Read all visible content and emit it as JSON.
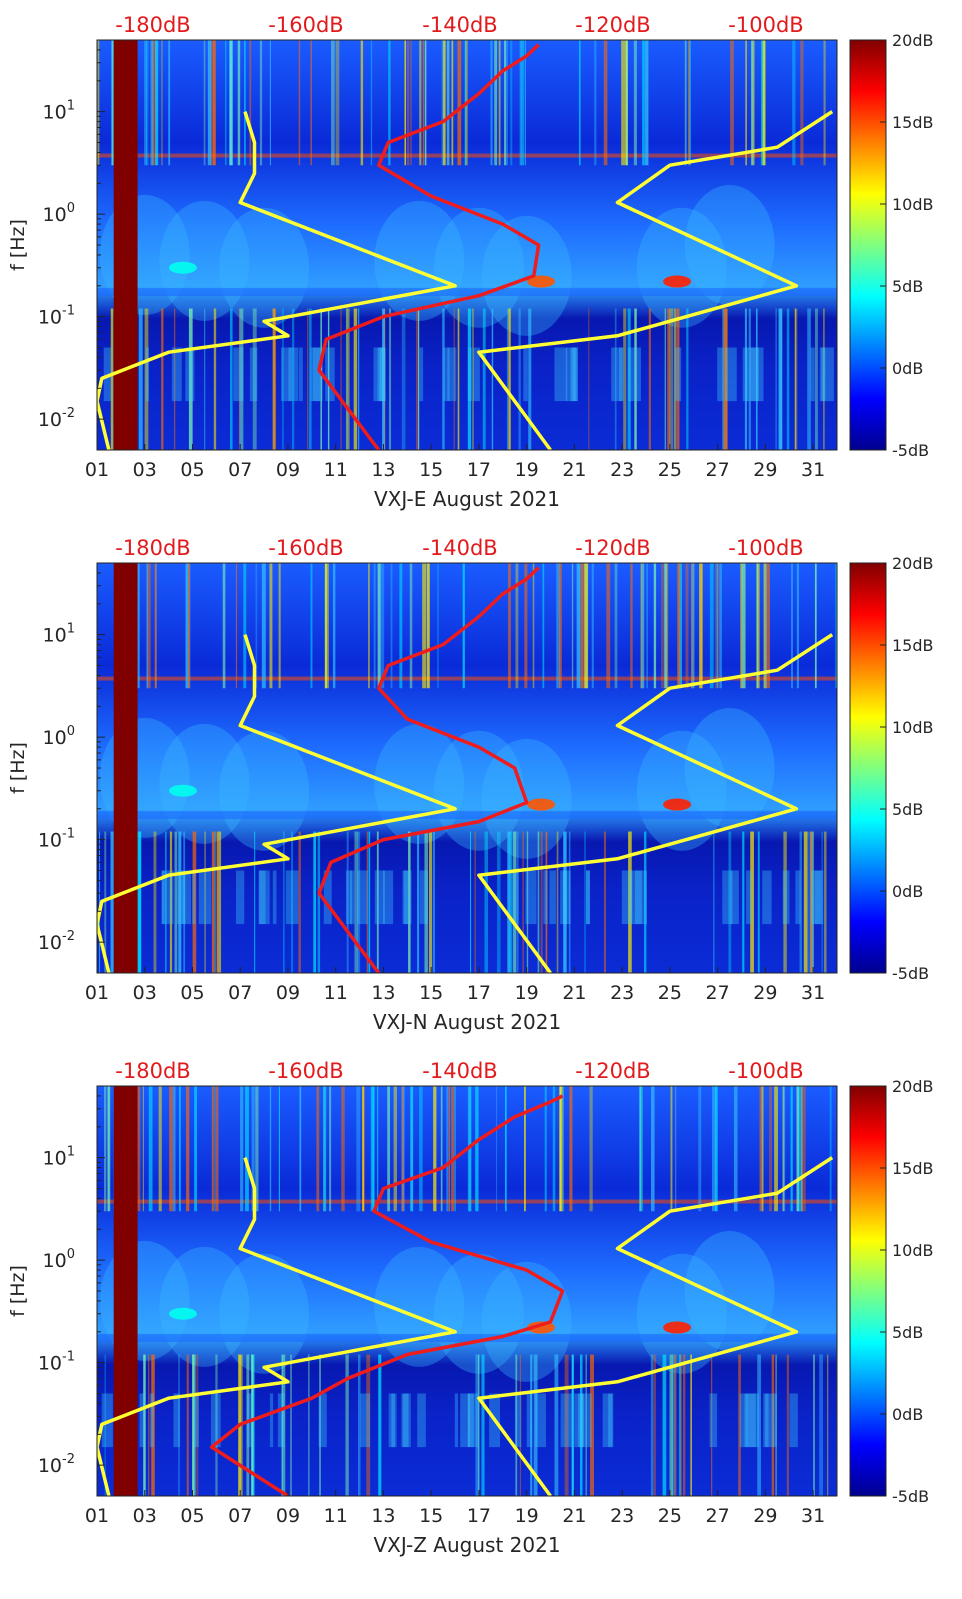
{
  "figure": {
    "description_days": "August 2021"
  },
  "chart_data": [
    {
      "type": "heatmap",
      "xlabel": "VXJ-E August 2021",
      "ylabel": "f [Hz]",
      "top_axis_labels": [
        "-180dB",
        "-160dB",
        "-140dB",
        "-120dB",
        "-100dB"
      ],
      "x_ticks": [
        "01",
        "03",
        "05",
        "07",
        "09",
        "11",
        "13",
        "15",
        "17",
        "19",
        "21",
        "23",
        "25",
        "27",
        "29",
        "31"
      ],
      "y_ticks": [
        {
          "value": 10,
          "label": "10^1"
        },
        {
          "value": 1,
          "label": "10^0"
        },
        {
          "value": 0.1,
          "label": "10^-1"
        },
        {
          "value": 0.01,
          "label": "10^-2"
        }
      ],
      "xlim": [
        1,
        32
      ],
      "ylim": [
        0.005,
        50
      ],
      "colorbar": {
        "labels": [
          "20dB",
          "15dB",
          "10dB",
          "5dB",
          "0dB",
          "-5dB"
        ],
        "range": [
          -5,
          20
        ]
      },
      "series": [
        {
          "name": "yellow-low-noise-model",
          "color": "#ffff33",
          "points": [
            [
              1.5,
              0.005
            ],
            [
              1.0,
              0.015
            ],
            [
              1.2,
              0.025
            ],
            [
              4,
              0.045
            ],
            [
              9.0,
              0.065
            ],
            [
              8,
              0.09
            ],
            [
              16,
              0.2
            ],
            [
              7,
              1.3
            ],
            [
              7.6,
              2.5
            ],
            [
              7.6,
              5
            ],
            [
              7.2,
              10
            ]
          ]
        },
        {
          "name": "yellow-high-noise-model",
          "color": "#ffff33",
          "points": [
            [
              20,
              0.005
            ],
            [
              17,
              0.045
            ],
            [
              22.8,
              0.065
            ],
            [
              30.3,
              0.2
            ],
            [
              22.8,
              1.3
            ],
            [
              25,
              3
            ],
            [
              29.5,
              4.5
            ],
            [
              31.8,
              10
            ]
          ]
        },
        {
          "name": "red-psd",
          "color": "#ee1c1c",
          "points": [
            [
              12.8,
              0.005
            ],
            [
              10.3,
              0.03
            ],
            [
              10.6,
              0.06
            ],
            [
              13,
              0.1
            ],
            [
              17,
              0.16
            ],
            [
              19.3,
              0.25
            ],
            [
              19.5,
              0.5
            ],
            [
              18,
              0.8
            ],
            [
              15,
              1.5
            ],
            [
              12.8,
              3
            ],
            [
              13.2,
              5
            ],
            [
              15.5,
              8
            ],
            [
              17,
              15
            ],
            [
              18,
              25
            ],
            [
              19,
              35
            ],
            [
              19.5,
              45
            ]
          ]
        }
      ]
    },
    {
      "type": "heatmap",
      "xlabel": "VXJ-N August 2021",
      "ylabel": "f [Hz]",
      "top_axis_labels": [
        "-180dB",
        "-160dB",
        "-140dB",
        "-120dB",
        "-100dB"
      ],
      "x_ticks": [
        "01",
        "03",
        "05",
        "07",
        "09",
        "11",
        "13",
        "15",
        "17",
        "19",
        "21",
        "23",
        "25",
        "27",
        "29",
        "31"
      ],
      "y_ticks": [
        {
          "value": 10,
          "label": "10^1"
        },
        {
          "value": 1,
          "label": "10^0"
        },
        {
          "value": 0.1,
          "label": "10^-1"
        },
        {
          "value": 0.01,
          "label": "10^-2"
        }
      ],
      "xlim": [
        1,
        32
      ],
      "ylim": [
        0.005,
        50
      ],
      "colorbar": {
        "labels": [
          "20dB",
          "15dB",
          "10dB",
          "5dB",
          "0dB",
          "-5dB"
        ],
        "range": [
          -5,
          20
        ]
      },
      "series": [
        {
          "name": "yellow-low-noise-model",
          "color": "#ffff33",
          "points": [
            [
              1.5,
              0.005
            ],
            [
              1.0,
              0.015
            ],
            [
              1.2,
              0.025
            ],
            [
              4,
              0.045
            ],
            [
              9.0,
              0.065
            ],
            [
              8,
              0.09
            ],
            [
              16,
              0.2
            ],
            [
              7,
              1.3
            ],
            [
              7.6,
              2.5
            ],
            [
              7.6,
              5
            ],
            [
              7.2,
              10
            ]
          ]
        },
        {
          "name": "yellow-high-noise-model",
          "color": "#ffff33",
          "points": [
            [
              20,
              0.005
            ],
            [
              17,
              0.045
            ],
            [
              22.8,
              0.065
            ],
            [
              30.3,
              0.2
            ],
            [
              22.8,
              1.3
            ],
            [
              25,
              3
            ],
            [
              29.5,
              4.5
            ],
            [
              31.8,
              10
            ]
          ]
        },
        {
          "name": "red-psd",
          "color": "#ee1c1c",
          "points": [
            [
              12.8,
              0.005
            ],
            [
              10.3,
              0.03
            ],
            [
              10.8,
              0.06
            ],
            [
              13,
              0.1
            ],
            [
              17,
              0.15
            ],
            [
              19,
              0.23
            ],
            [
              18.5,
              0.5
            ],
            [
              17,
              0.8
            ],
            [
              14,
              1.5
            ],
            [
              12.8,
              3
            ],
            [
              13.2,
              5
            ],
            [
              15.5,
              8
            ],
            [
              17,
              15
            ],
            [
              18,
              25
            ],
            [
              19,
              35
            ],
            [
              19.5,
              45
            ]
          ]
        }
      ]
    },
    {
      "type": "heatmap",
      "xlabel": "VXJ-Z August 2021",
      "ylabel": "f [Hz]",
      "top_axis_labels": [
        "-180dB",
        "-160dB",
        "-140dB",
        "-120dB",
        "-100dB"
      ],
      "x_ticks": [
        "01",
        "03",
        "05",
        "07",
        "09",
        "11",
        "13",
        "15",
        "17",
        "19",
        "21",
        "23",
        "25",
        "27",
        "29",
        "31"
      ],
      "y_ticks": [
        {
          "value": 10,
          "label": "10^1"
        },
        {
          "value": 1,
          "label": "10^0"
        },
        {
          "value": 0.1,
          "label": "10^-1"
        },
        {
          "value": 0.01,
          "label": "10^-2"
        }
      ],
      "xlim": [
        1,
        32
      ],
      "ylim": [
        0.005,
        50
      ],
      "colorbar": {
        "labels": [
          "20dB",
          "15dB",
          "10dB",
          "5dB",
          "0dB",
          "-5dB"
        ],
        "range": [
          -5,
          20
        ]
      },
      "series": [
        {
          "name": "yellow-low-noise-model",
          "color": "#ffff33",
          "points": [
            [
              1.5,
              0.005
            ],
            [
              1.0,
              0.015
            ],
            [
              1.2,
              0.025
            ],
            [
              4,
              0.045
            ],
            [
              9.0,
              0.065
            ],
            [
              8,
              0.09
            ],
            [
              16,
              0.2
            ],
            [
              7,
              1.3
            ],
            [
              7.6,
              2.5
            ],
            [
              7.6,
              5
            ],
            [
              7.2,
              10
            ]
          ]
        },
        {
          "name": "yellow-high-noise-model",
          "color": "#ffff33",
          "points": [
            [
              20,
              0.005
            ],
            [
              17,
              0.045
            ],
            [
              22.8,
              0.065
            ],
            [
              30.3,
              0.2
            ],
            [
              22.8,
              1.3
            ],
            [
              25,
              3
            ],
            [
              29.5,
              4.5
            ],
            [
              31.8,
              10
            ]
          ]
        },
        {
          "name": "red-psd",
          "color": "#ee1c1c",
          "points": [
            [
              9,
              0.005
            ],
            [
              5.8,
              0.015
            ],
            [
              7,
              0.025
            ],
            [
              10,
              0.045
            ],
            [
              11.5,
              0.07
            ],
            [
              14,
              0.12
            ],
            [
              18,
              0.18
            ],
            [
              20,
              0.25
            ],
            [
              20.5,
              0.5
            ],
            [
              19,
              0.8
            ],
            [
              15,
              1.5
            ],
            [
              12.6,
              3
            ],
            [
              13,
              5
            ],
            [
              15.5,
              8
            ],
            [
              17,
              15
            ],
            [
              18.5,
              25
            ],
            [
              20,
              35
            ],
            [
              20.5,
              40
            ]
          ]
        }
      ]
    }
  ]
}
